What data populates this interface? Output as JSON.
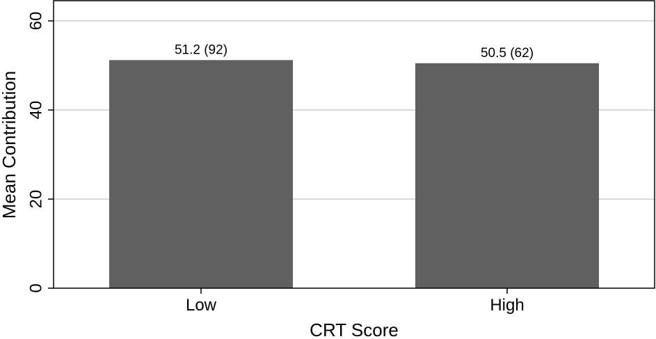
{
  "chart_data": {
    "type": "bar",
    "categories": [
      "Low",
      "High"
    ],
    "values": [
      51.2,
      50.5
    ],
    "data_labels": [
      "51.2 (92)",
      "50.5 (62)"
    ],
    "xlabel": "CRT Score",
    "ylabel": "Mean Contribution",
    "ylim": [
      0,
      60
    ],
    "yticks": [
      0,
      20,
      40,
      60
    ],
    "ytick_labels": [
      "0",
      "20",
      "40",
      "60"
    ],
    "grid": true,
    "legend": "none",
    "colors": {
      "bar": "#606060",
      "gridline": "#d9d9d9",
      "frame": "#000000"
    }
  }
}
